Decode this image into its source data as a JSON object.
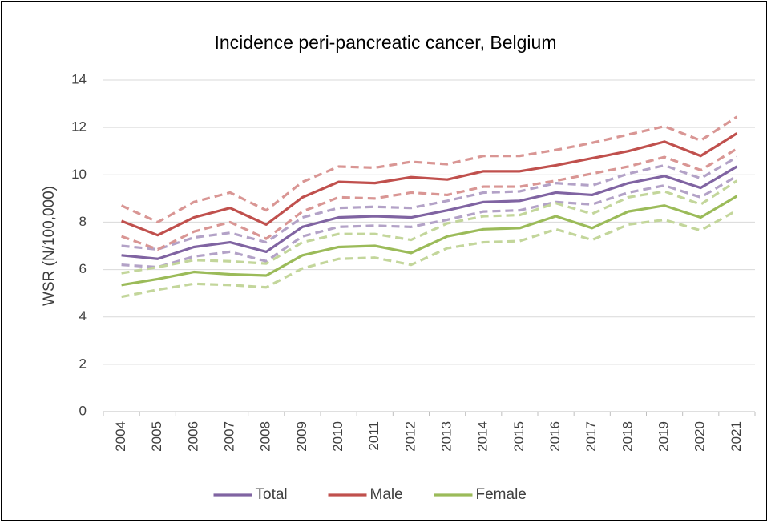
{
  "chart_data": {
    "type": "line",
    "title": "Incidence peri-pancreatic cancer, Belgium",
    "y_label": "WSR (N/100,000)",
    "categories": [
      "2004",
      "2005",
      "2006",
      "2007",
      "2008",
      "2009",
      "2010",
      "2011",
      "2012",
      "2013",
      "2014",
      "2015",
      "2016",
      "2017",
      "2018",
      "2019",
      "2020",
      "2021"
    ],
    "ylim": [
      0,
      14
    ],
    "yticks": [
      0,
      2,
      4,
      6,
      8,
      10,
      12,
      14
    ],
    "grid": true,
    "legend": "bottom",
    "series": [
      {
        "name": "Total",
        "color": "#8064a2",
        "values": [
          6.6,
          6.45,
          6.95,
          7.15,
          6.75,
          7.8,
          8.2,
          8.25,
          8.2,
          8.5,
          8.85,
          8.9,
          9.25,
          9.15,
          9.65,
          9.95,
          9.45,
          10.35
        ]
      },
      {
        "name": "Male",
        "color": "#c0504d",
        "values": [
          8.05,
          7.45,
          8.2,
          8.6,
          7.9,
          9.05,
          9.7,
          9.65,
          9.9,
          9.8,
          10.15,
          10.15,
          10.4,
          10.7,
          11.0,
          11.4,
          10.8,
          11.75
        ]
      },
      {
        "name": "Female",
        "color": "#9bbb59",
        "values": [
          5.35,
          5.6,
          5.9,
          5.8,
          5.75,
          6.6,
          6.95,
          7.0,
          6.7,
          7.4,
          7.7,
          7.75,
          8.25,
          7.75,
          8.45,
          8.7,
          8.2,
          9.1
        ]
      },
      {
        "color": "#b3a2c7",
        "dashed": true,
        "values": [
          7.0,
          6.85,
          7.35,
          7.55,
          7.15,
          8.2,
          8.6,
          8.65,
          8.6,
          8.9,
          9.25,
          9.3,
          9.65,
          9.55,
          10.05,
          10.4,
          9.85,
          10.75
        ]
      },
      {
        "color": "#b3a2c7",
        "dashed": true,
        "values": [
          6.2,
          6.1,
          6.55,
          6.75,
          6.35,
          7.4,
          7.8,
          7.85,
          7.8,
          8.1,
          8.45,
          8.5,
          8.85,
          8.75,
          9.25,
          9.55,
          9.05,
          9.95
        ]
      },
      {
        "color": "#d99694",
        "dashed": true,
        "values": [
          8.7,
          8.0,
          8.85,
          9.25,
          8.5,
          9.7,
          10.35,
          10.3,
          10.55,
          10.45,
          10.8,
          10.8,
          11.05,
          11.35,
          11.7,
          12.05,
          11.45,
          12.45
        ]
      },
      {
        "color": "#d99694",
        "dashed": true,
        "values": [
          7.4,
          6.85,
          7.6,
          8.0,
          7.3,
          8.45,
          9.05,
          9.0,
          9.25,
          9.15,
          9.5,
          9.5,
          9.75,
          10.05,
          10.35,
          10.75,
          10.2,
          11.1
        ]
      },
      {
        "color": "#c3d69b",
        "dashed": true,
        "values": [
          5.85,
          6.1,
          6.4,
          6.35,
          6.25,
          7.15,
          7.5,
          7.5,
          7.25,
          7.95,
          8.25,
          8.3,
          8.8,
          8.35,
          9.05,
          9.3,
          8.75,
          9.75
        ]
      },
      {
        "color": "#c3d69b",
        "dashed": true,
        "values": [
          4.85,
          5.15,
          5.4,
          5.35,
          5.25,
          6.05,
          6.45,
          6.5,
          6.2,
          6.9,
          7.15,
          7.2,
          7.7,
          7.25,
          7.9,
          8.1,
          7.65,
          8.5
        ]
      }
    ]
  }
}
